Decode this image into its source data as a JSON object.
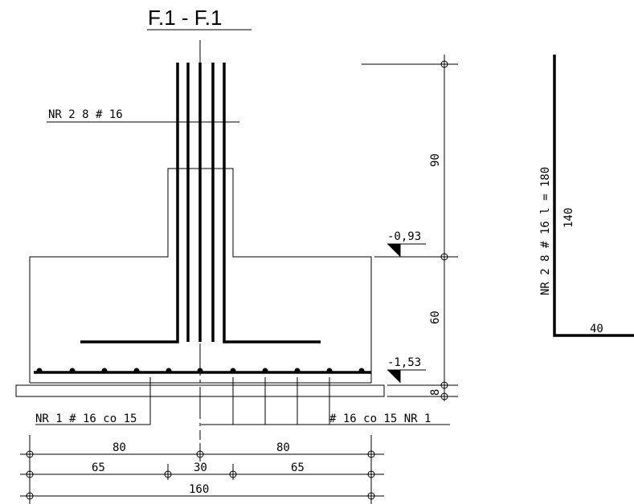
{
  "title": "F.1 - F.1",
  "rebar_labels": {
    "nr2": "NR 2  8 # 16",
    "nr1_left": "NR 1  # 16 co 15",
    "nr1_right": "# 16 co 15  NR 1"
  },
  "levels": {
    "top": "-0,93",
    "bottom": "-1,53"
  },
  "vertical_dims": {
    "upper": "90",
    "middle": "60",
    "lower": "8"
  },
  "horizontal_dims": {
    "row1": [
      "80",
      "80"
    ],
    "row2": [
      "65",
      "30",
      "65"
    ],
    "row3": [
      "160"
    ]
  },
  "bar_schedule": {
    "label": "NR 2  8 # 16  l = 180",
    "vertical_len": "140",
    "horizontal_len": "40"
  }
}
